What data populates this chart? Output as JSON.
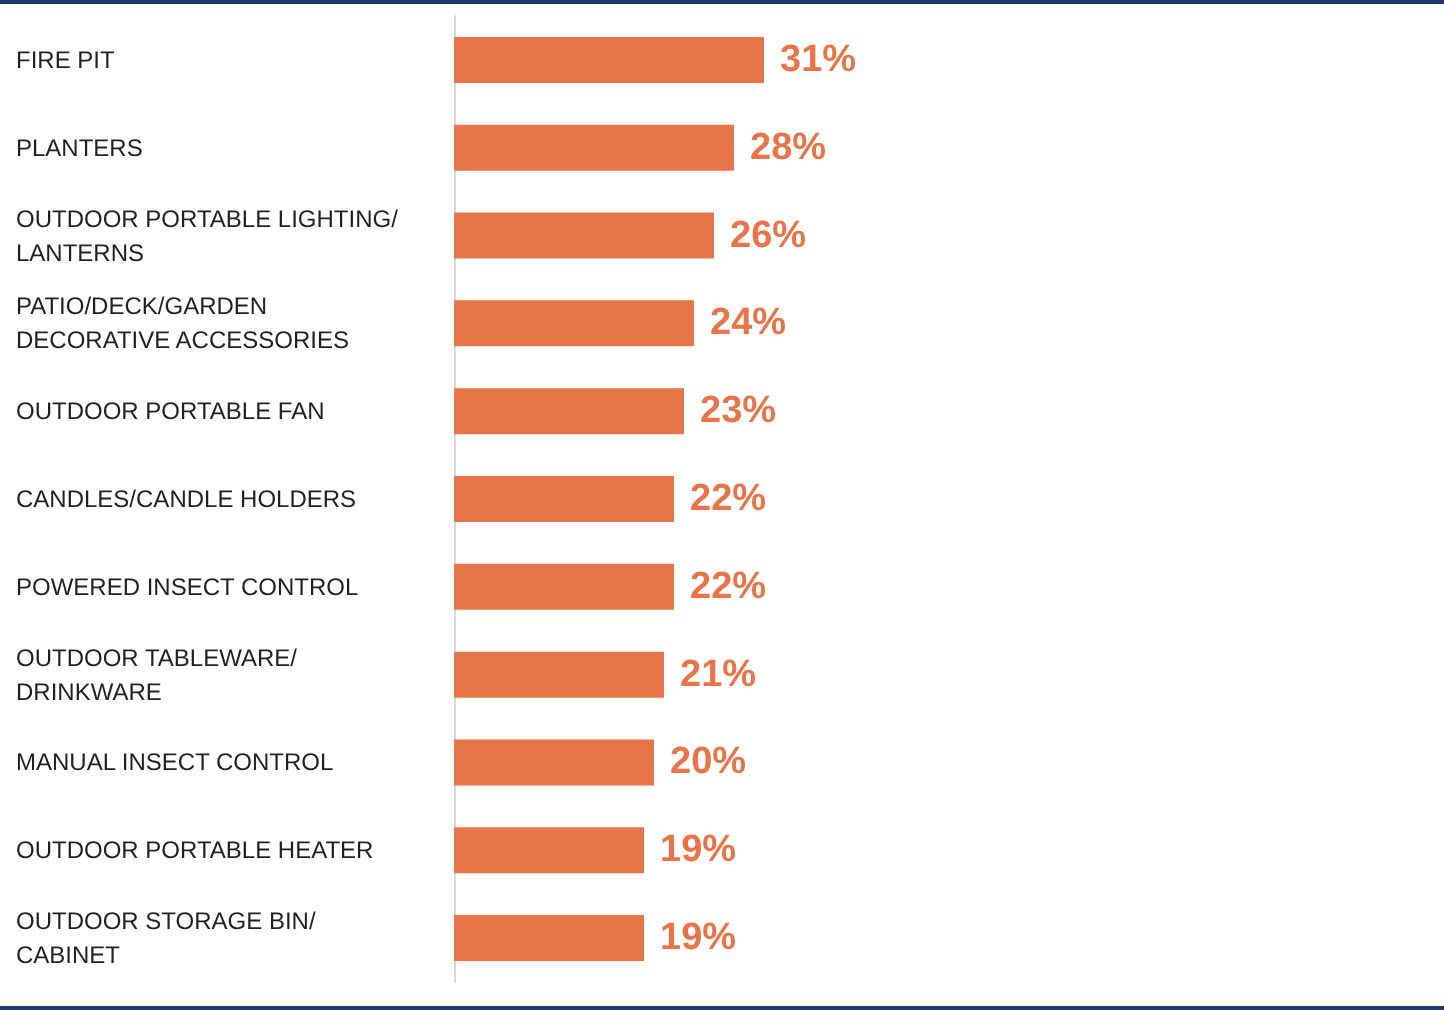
{
  "chart_data": {
    "type": "bar",
    "orientation": "horizontal",
    "categories": [
      "FIRE PIT",
      "PLANTERS",
      "OUTDOOR PORTABLE LIGHTING/LANTERNS",
      "PATIO/DECK/GARDEN DECORATIVE ACCESSORIES",
      "OUTDOOR PORTABLE FAN",
      "CANDLES/CANDLE HOLDERS",
      "POWERED INSECT CONTROL",
      "OUTDOOR TABLEWARE/DRINKWARE",
      "MANUAL INSECT CONTROL",
      "OUTDOOR PORTABLE HEATER",
      "OUTDOOR STORAGE BIN/CABINET"
    ],
    "values": [
      31,
      28,
      26,
      24,
      23,
      22,
      22,
      21,
      20,
      19,
      19
    ],
    "value_labels": [
      "31%",
      "28%",
      "26%",
      "24%",
      "23%",
      "22%",
      "22%",
      "21%",
      "20%",
      "19%",
      "19%"
    ],
    "color": "#e8744a"
  }
}
